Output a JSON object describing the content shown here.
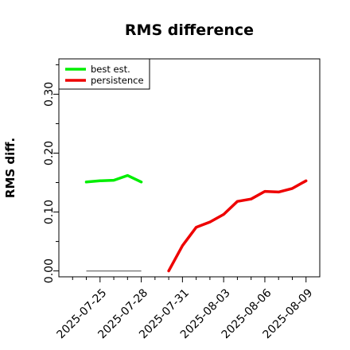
{
  "chart_data": {
    "type": "line",
    "title": "RMS difference",
    "xlabel": "",
    "ylabel": "RMS diff.",
    "ylim": [
      -0.01,
      0.36
    ],
    "yticks": [
      0.0,
      0.1,
      0.2,
      0.3
    ],
    "ytick_labels": [
      "0.00",
      "0.10",
      "0.20",
      "0.30"
    ],
    "xlim": [
      "2025-07-22",
      "2025-08-10"
    ],
    "xticks": [
      "2025-07-25",
      "2025-07-28",
      "2025-07-31",
      "2025-08-03",
      "2025-08-06",
      "2025-08-09"
    ],
    "legend_position": "top-left",
    "grid": false,
    "zero_line": {
      "x": [
        "2025-07-24",
        "2025-07-28"
      ],
      "y": 0.0,
      "color": "#808080"
    },
    "series": [
      {
        "name": "best est.",
        "color": "#00ee00",
        "x": [
          "2025-07-24",
          "2025-07-25",
          "2025-07-26",
          "2025-07-27",
          "2025-07-28"
        ],
        "values": [
          0.151,
          0.153,
          0.154,
          0.162,
          0.151
        ]
      },
      {
        "name": "persistence",
        "color": "#ee0000",
        "x": [
          "2025-07-30",
          "2025-07-31",
          "2025-08-01",
          "2025-08-02",
          "2025-08-03",
          "2025-08-04",
          "2025-08-05",
          "2025-08-06",
          "2025-08-07",
          "2025-08-08",
          "2025-08-09"
        ],
        "values": [
          0.0,
          0.043,
          0.074,
          0.083,
          0.096,
          0.118,
          0.122,
          0.135,
          0.134,
          0.14,
          0.153
        ]
      }
    ]
  }
}
